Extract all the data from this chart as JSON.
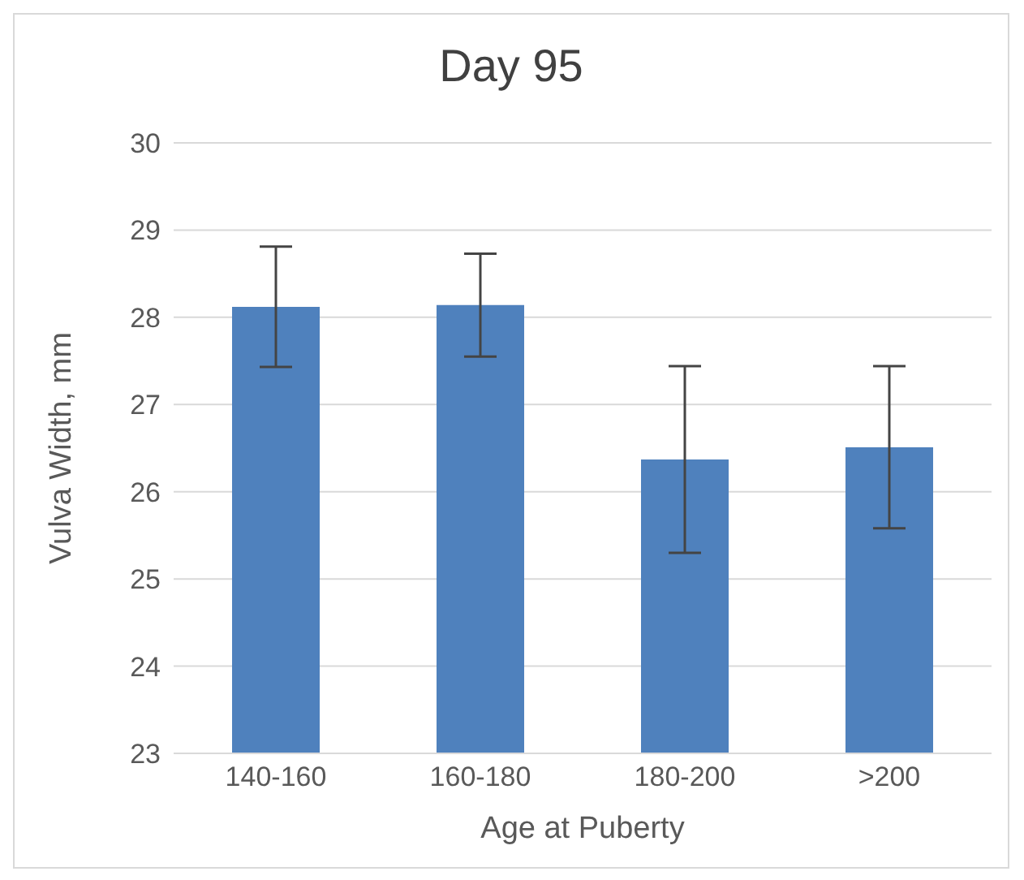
{
  "chart_data": {
    "type": "bar",
    "title": "Day 95",
    "xlabel": "Age at Puberty",
    "ylabel": "Vulva Width, mm",
    "categories": [
      "140-160",
      "160-180",
      "180-200",
      ">200"
    ],
    "values": [
      28.12,
      28.14,
      26.37,
      26.51
    ],
    "errors": [
      0.69,
      0.59,
      1.07,
      0.93
    ],
    "color": "#4f81bd",
    "ylim": [
      23,
      30
    ],
    "yticks": [
      23,
      24,
      25,
      26,
      27,
      28,
      29,
      30
    ],
    "grid": "y"
  }
}
